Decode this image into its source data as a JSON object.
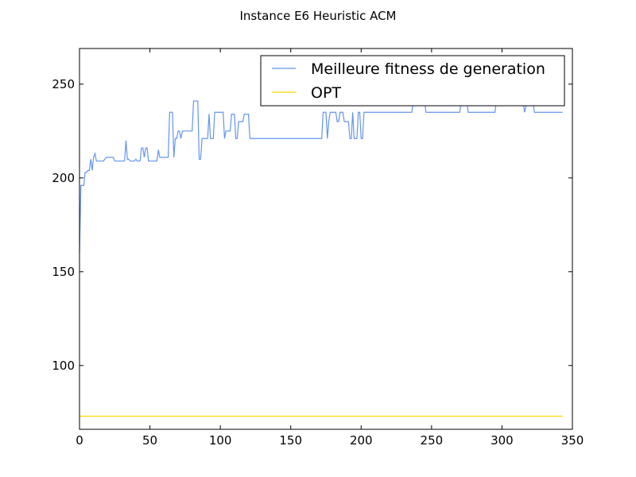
{
  "chart_data": {
    "type": "line",
    "title": "Instance E6 Heuristic ACM",
    "xlabel": "",
    "ylabel": "",
    "xlim": [
      0,
      350
    ],
    "ylim": [
      66,
      269
    ],
    "xticks": [
      0,
      50,
      100,
      150,
      200,
      250,
      300,
      350
    ],
    "yticks": [
      100,
      150,
      200,
      250
    ],
    "grid": false,
    "legend_position": "top-right",
    "series": [
      {
        "name": "Meilleure fitness de generation",
        "color": "#6495ed",
        "points": [
          [
            0,
            160
          ],
          [
            1,
            196
          ],
          [
            2,
            196
          ],
          [
            3,
            196
          ],
          [
            4,
            203
          ],
          [
            5,
            203
          ],
          [
            6,
            204
          ],
          [
            7,
            204
          ],
          [
            8,
            210
          ],
          [
            9,
            204
          ],
          [
            10,
            211
          ],
          [
            11,
            213
          ],
          [
            12,
            209
          ],
          [
            14,
            209
          ],
          [
            17,
            209
          ],
          [
            19,
            211
          ],
          [
            22,
            211
          ],
          [
            24,
            211
          ],
          [
            25,
            209
          ],
          [
            28,
            209
          ],
          [
            31,
            209
          ],
          [
            32,
            209
          ],
          [
            33,
            220
          ],
          [
            34,
            210
          ],
          [
            35,
            210
          ],
          [
            36,
            209
          ],
          [
            38,
            209
          ],
          [
            39,
            209
          ],
          [
            40,
            210
          ],
          [
            41,
            209
          ],
          [
            43,
            209
          ],
          [
            44,
            216
          ],
          [
            45,
            216
          ],
          [
            46,
            211
          ],
          [
            47,
            216
          ],
          [
            48,
            216
          ],
          [
            49,
            209
          ],
          [
            51,
            209
          ],
          [
            53,
            209
          ],
          [
            55,
            209
          ],
          [
            56,
            215
          ],
          [
            57,
            211
          ],
          [
            59,
            211
          ],
          [
            61,
            211
          ],
          [
            63,
            211
          ],
          [
            64,
            235
          ],
          [
            65,
            235
          ],
          [
            66,
            235
          ],
          [
            67,
            211
          ],
          [
            68,
            221
          ],
          [
            69,
            221
          ],
          [
            70,
            225
          ],
          [
            71,
            225
          ],
          [
            72,
            221
          ],
          [
            73,
            225
          ],
          [
            75,
            225
          ],
          [
            77,
            225
          ],
          [
            80,
            225
          ],
          [
            81,
            241
          ],
          [
            83,
            241
          ],
          [
            84,
            241
          ],
          [
            85,
            210
          ],
          [
            86,
            210
          ],
          [
            87,
            221
          ],
          [
            89,
            221
          ],
          [
            91,
            221
          ],
          [
            92,
            234
          ],
          [
            93,
            221
          ],
          [
            94,
            221
          ],
          [
            95,
            221
          ],
          [
            96,
            235
          ],
          [
            98,
            235
          ],
          [
            100,
            235
          ],
          [
            101,
            235
          ],
          [
            102,
            235
          ],
          [
            103,
            221
          ],
          [
            104,
            225
          ],
          [
            106,
            225
          ],
          [
            107,
            225
          ],
          [
            108,
            234
          ],
          [
            110,
            234
          ],
          [
            111,
            221
          ],
          [
            112,
            221
          ],
          [
            113,
            230
          ],
          [
            115,
            230
          ],
          [
            116,
            230
          ],
          [
            117,
            234
          ],
          [
            119,
            234
          ],
          [
            120,
            234
          ],
          [
            121,
            221
          ],
          [
            140,
            221
          ],
          [
            160,
            221
          ],
          [
            172,
            221
          ],
          [
            173,
            235
          ],
          [
            175,
            235
          ],
          [
            176,
            221
          ],
          [
            177,
            230
          ],
          [
            178,
            235
          ],
          [
            182,
            235
          ],
          [
            183,
            230
          ],
          [
            184,
            230
          ],
          [
            185,
            235
          ],
          [
            187,
            235
          ],
          [
            188,
            230
          ],
          [
            191,
            230
          ],
          [
            192,
            221
          ],
          [
            193,
            221
          ],
          [
            194,
            235
          ],
          [
            195,
            221
          ],
          [
            196,
            221
          ],
          [
            197,
            221
          ],
          [
            198,
            235
          ],
          [
            199,
            235
          ],
          [
            200,
            221
          ],
          [
            201,
            221
          ],
          [
            202,
            235
          ],
          [
            210,
            235
          ],
          [
            220,
            235
          ],
          [
            236,
            235
          ],
          [
            237,
            241
          ],
          [
            240,
            241
          ],
          [
            245,
            241
          ],
          [
            246,
            235
          ],
          [
            250,
            235
          ],
          [
            260,
            235
          ],
          [
            270,
            235
          ],
          [
            271,
            241
          ],
          [
            275,
            241
          ],
          [
            276,
            235
          ],
          [
            285,
            235
          ],
          [
            295,
            235
          ],
          [
            296,
            241
          ],
          [
            305,
            241
          ],
          [
            315,
            241
          ],
          [
            316,
            235
          ],
          [
            318,
            241
          ],
          [
            322,
            241
          ],
          [
            323,
            235
          ],
          [
            330,
            235
          ],
          [
            343,
            235
          ]
        ]
      },
      {
        "name": "OPT",
        "color": "#ffd700",
        "points": [
          [
            0,
            73
          ],
          [
            343,
            73
          ]
        ]
      }
    ]
  }
}
